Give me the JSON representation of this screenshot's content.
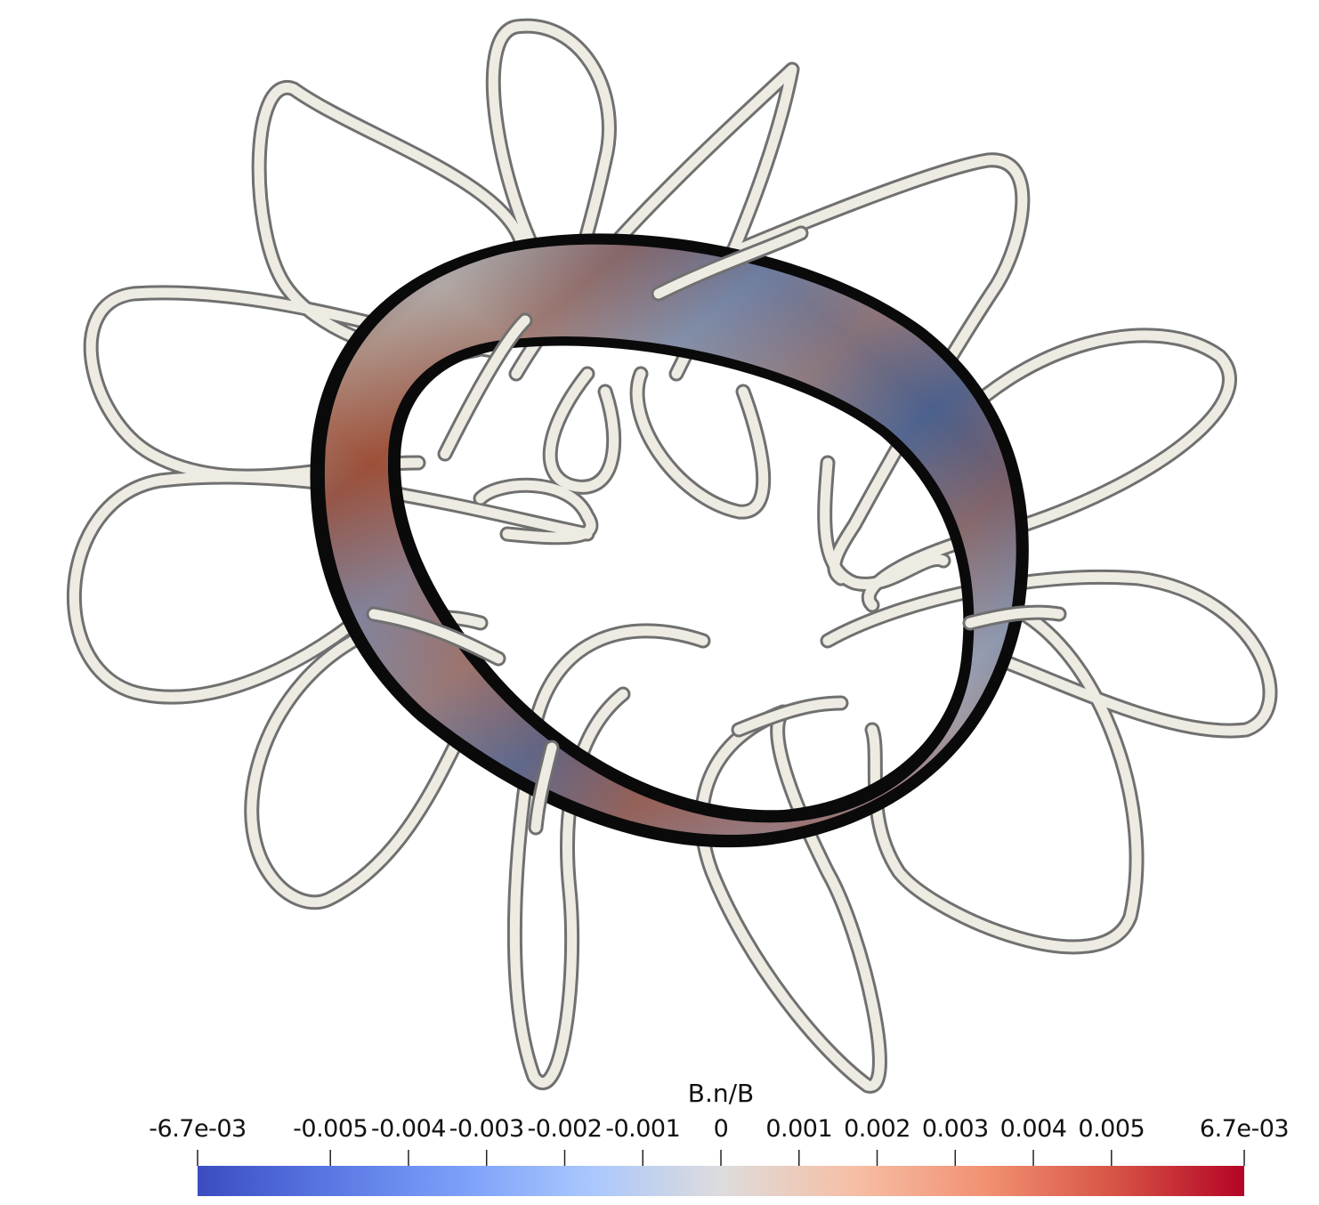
{
  "colors": {
    "background": "#ffffff",
    "coil_light": "#eeebe3",
    "coil_dark": "#707070",
    "surface_edge": "#0a0a0a",
    "colormap_low": "#3b4cc0",
    "colormap_mid": "#dddddd",
    "colormap_high": "#b40426"
  },
  "scene": {
    "coils": "twelve-coil-tubes",
    "surface": "plasma-surface-torus"
  },
  "colorbar": {
    "title": "B.n/B",
    "colormap": "cool-to-warm",
    "range": [
      -0.0067,
      0.0067
    ],
    "min_label": "-6.7e-03",
    "max_label": "6.7e-03",
    "ticks": [
      {
        "value": -0.005,
        "label": "-0.005"
      },
      {
        "value": -0.004,
        "label": "-0.004"
      },
      {
        "value": -0.003,
        "label": "-0.003"
      },
      {
        "value": -0.002,
        "label": "-0.002"
      },
      {
        "value": -0.001,
        "label": "-0.001"
      },
      {
        "value": 0,
        "label": "0"
      },
      {
        "value": 0.001,
        "label": "0.001"
      },
      {
        "value": 0.002,
        "label": "0.002"
      },
      {
        "value": 0.003,
        "label": "0.003"
      },
      {
        "value": 0.004,
        "label": "0.004"
      },
      {
        "value": 0.005,
        "label": "0.005"
      }
    ]
  }
}
